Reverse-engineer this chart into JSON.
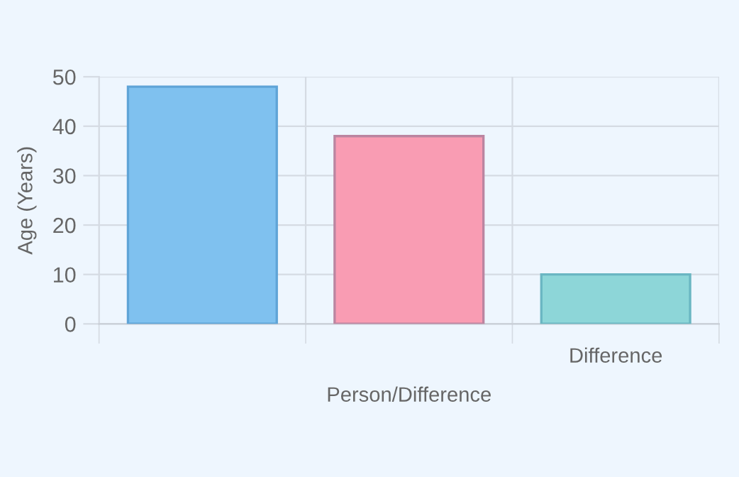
{
  "chart_data": {
    "type": "bar",
    "xlabel": "Person/Difference",
    "ylabel": "Age (Years)",
    "categories": [
      null,
      null,
      "Difference"
    ],
    "values": [
      48,
      38,
      10
    ],
    "colors": [
      "#7fc1ef",
      "#f99cb3",
      "#8dd6d8"
    ],
    "ylim": [
      0,
      50
    ],
    "yticks": [
      0,
      10,
      20,
      30,
      40,
      50
    ],
    "grid": true,
    "legend": false
  }
}
